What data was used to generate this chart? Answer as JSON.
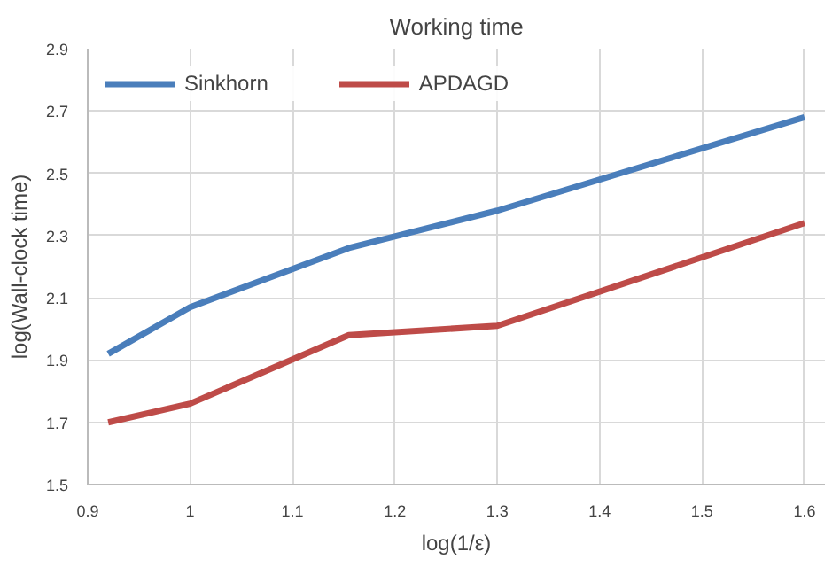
{
  "chart_data": {
    "type": "line",
    "title": "Working time",
    "xlabel": "log(1/ε)",
    "ylabel": "log(Wall-clock time)",
    "x": [
      0.92,
      1.0,
      1.155,
      1.3,
      1.6
    ],
    "series": [
      {
        "name": "Sinkhorn",
        "color": "#4a7ebb",
        "values": [
          1.92,
          2.07,
          2.26,
          2.38,
          2.68
        ]
      },
      {
        "name": "APDAGD",
        "color": "#be4b48",
        "values": [
          1.7,
          1.76,
          1.98,
          2.01,
          2.34
        ]
      }
    ],
    "xlim": [
      0.9,
      1.62
    ],
    "ylim": [
      1.5,
      2.9
    ],
    "xticks": [
      0.9,
      1,
      1.1,
      1.2,
      1.3,
      1.4,
      1.5,
      1.6
    ],
    "yticks": [
      1.5,
      1.7,
      1.9,
      2.1,
      2.3,
      2.5,
      2.7,
      2.9
    ],
    "grid": true,
    "legend": "top left",
    "marker": "none",
    "line_style": "solid"
  }
}
